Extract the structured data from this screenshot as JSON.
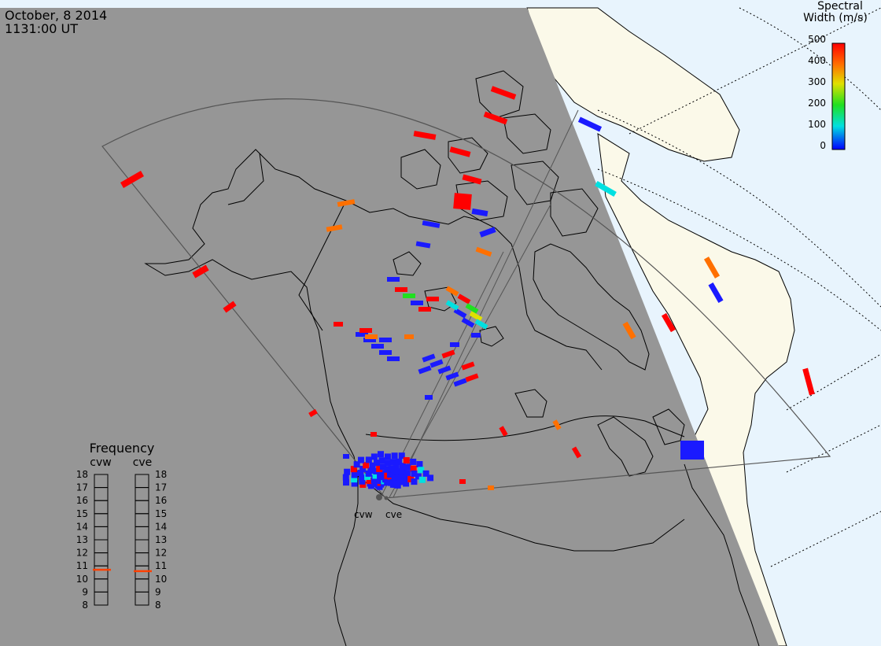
{
  "header": {
    "date": "October, 8 2014",
    "time": "1131:00 UT"
  },
  "colorbar": {
    "title_line1": "Spectral",
    "title_line2": "Width (m/s)",
    "ticks": [
      "500",
      "400",
      "300",
      "200",
      "100",
      "0"
    ],
    "colors": [
      "#ff0000",
      "#ff8000",
      "#ffff00",
      "#00ff00",
      "#00ffff",
      "#0000ff"
    ]
  },
  "frequency_panel": {
    "title": "Frequency",
    "radars": [
      "cvw",
      "cve"
    ],
    "scale": [
      "18",
      "17",
      "16",
      "15",
      "14",
      "13",
      "12",
      "11",
      "10",
      "9",
      "8"
    ],
    "cvw_value_mhz": 10.7,
    "cve_value_mhz": 10.6
  },
  "radar_sites": {
    "cvw": "cvw",
    "cve": "cve"
  },
  "colors": {
    "night_side": "#969696",
    "day_land": "#fbf9e9",
    "day_ocean": "#e8f4fd",
    "frequency_marker": "#ff4000"
  }
}
